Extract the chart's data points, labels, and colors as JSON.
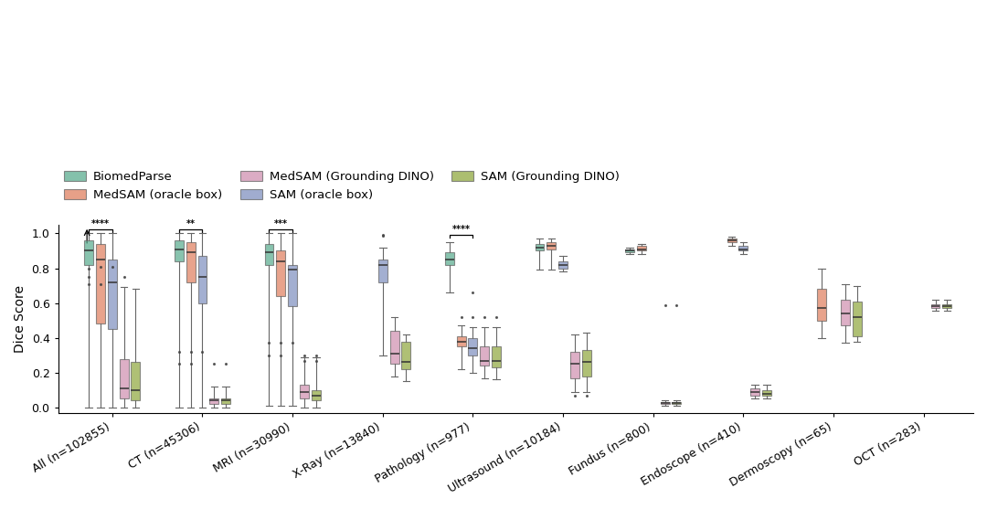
{
  "categories": [
    "All (n=102855)",
    "CT (n=45306)",
    "MRI (n=30990)",
    "X-Ray (n=13840)",
    "Pathology (n=977)",
    "Ultrasound (n=10184)",
    "Fundus (n=800)",
    "Endoscope (n=410)",
    "Dermoscopy (n=65)",
    "OCT (n=283)"
  ],
  "colors": {
    "BiomedParse": "#5BAD8F",
    "MedSAM_oracle": "#E08060",
    "SAM_oracle": "#8090C0",
    "MedSAM_DINO": "#D090B0",
    "SAM_DINO": "#90A840"
  },
  "legend_labels": [
    "BiomedParse",
    "MedSAM (oracle box)",
    "SAM (oracle box)",
    "MedSAM (Grounding DINO)",
    "SAM (Grounding DINO)"
  ],
  "ylabel": "Dice Score",
  "background_color": "#ffffff",
  "boxes": {
    "All (n=102855)": {
      "BiomedParse": {
        "skip": false,
        "min": 0.0,
        "q1": 0.82,
        "med": 0.9,
        "q3": 0.96,
        "max": 1.0,
        "fliers_lo": [],
        "fliers_hi": [
          0.8,
          0.75,
          0.71
        ]
      },
      "MedSAM_oracle": {
        "skip": false,
        "min": 0.0,
        "q1": 0.48,
        "med": 0.85,
        "q3": 0.94,
        "max": 1.0,
        "fliers_lo": [],
        "fliers_hi": [
          0.81,
          0.71
        ]
      },
      "SAM_oracle": {
        "skip": false,
        "min": 0.0,
        "q1": 0.45,
        "med": 0.72,
        "q3": 0.85,
        "max": 1.0,
        "fliers_hi": [
          0.81
        ]
      },
      "MedSAM_DINO": {
        "skip": false,
        "min": 0.0,
        "q1": 0.05,
        "med": 0.11,
        "q3": 0.28,
        "max": 0.69,
        "fliers_hi": [
          0.75
        ]
      },
      "SAM_DINO": {
        "skip": false,
        "min": 0.0,
        "q1": 0.04,
        "med": 0.1,
        "q3": 0.26,
        "max": 0.68,
        "fliers_hi": []
      }
    },
    "CT (n=45306)": {
      "BiomedParse": {
        "skip": false,
        "min": 0.0,
        "q1": 0.84,
        "med": 0.91,
        "q3": 0.96,
        "max": 1.0,
        "fliers_hi": [
          0.32,
          0.25
        ]
      },
      "MedSAM_oracle": {
        "skip": false,
        "min": 0.0,
        "q1": 0.72,
        "med": 0.89,
        "q3": 0.95,
        "max": 1.0,
        "fliers_hi": [
          0.32,
          0.25
        ]
      },
      "SAM_oracle": {
        "skip": false,
        "min": 0.0,
        "q1": 0.6,
        "med": 0.75,
        "q3": 0.87,
        "max": 1.0,
        "fliers_hi": [
          0.32
        ]
      },
      "MedSAM_DINO": {
        "skip": false,
        "min": 0.0,
        "q1": 0.02,
        "med": 0.04,
        "q3": 0.05,
        "max": 0.12,
        "fliers_hi": [
          0.25
        ]
      },
      "SAM_DINO": {
        "skip": false,
        "min": 0.0,
        "q1": 0.02,
        "med": 0.04,
        "q3": 0.05,
        "max": 0.12,
        "fliers_hi": [
          0.25
        ]
      }
    },
    "MRI (n=30990)": {
      "BiomedParse": {
        "skip": false,
        "min": 0.01,
        "q1": 0.82,
        "med": 0.89,
        "q3": 0.94,
        "max": 1.0,
        "fliers_hi": [
          0.37,
          0.3
        ]
      },
      "MedSAM_oracle": {
        "skip": false,
        "min": 0.01,
        "q1": 0.64,
        "med": 0.84,
        "q3": 0.9,
        "max": 1.0,
        "fliers_hi": [
          0.37,
          0.3
        ]
      },
      "SAM_oracle": {
        "skip": false,
        "min": 0.01,
        "q1": 0.58,
        "med": 0.79,
        "q3": 0.82,
        "max": 1.0,
        "fliers_hi": [
          0.37
        ]
      },
      "MedSAM_DINO": {
        "skip": false,
        "min": 0.0,
        "q1": 0.05,
        "med": 0.09,
        "q3": 0.13,
        "max": 0.29,
        "fliers_hi": [
          0.27,
          0.3
        ]
      },
      "SAM_DINO": {
        "skip": false,
        "min": 0.0,
        "q1": 0.04,
        "med": 0.07,
        "q3": 0.1,
        "max": 0.29,
        "fliers_hi": [
          0.27,
          0.3
        ]
      }
    },
    "X-Ray (n=13840)": {
      "BiomedParse": {
        "skip": true,
        "min": 0.0,
        "q1": 0.0,
        "med": 0.0,
        "q3": 0.0,
        "max": 0.0,
        "fliers_hi": []
      },
      "MedSAM_oracle": {
        "skip": true,
        "min": 0.0,
        "q1": 0.0,
        "med": 0.0,
        "q3": 0.0,
        "max": 0.0,
        "fliers_hi": []
      },
      "SAM_oracle": {
        "skip": false,
        "min": 0.3,
        "q1": 0.72,
        "med": 0.82,
        "q3": 0.85,
        "max": 0.92,
        "fliers_hi": [
          0.985,
          0.99
        ]
      },
      "MedSAM_DINO": {
        "skip": false,
        "min": 0.18,
        "q1": 0.25,
        "med": 0.31,
        "q3": 0.44,
        "max": 0.52,
        "fliers_hi": []
      },
      "SAM_DINO": {
        "skip": false,
        "min": 0.15,
        "q1": 0.22,
        "med": 0.26,
        "q3": 0.38,
        "max": 0.42,
        "fliers_hi": []
      }
    },
    "Pathology (n=977)": {
      "BiomedParse": {
        "skip": false,
        "min": 0.66,
        "q1": 0.82,
        "med": 0.85,
        "q3": 0.89,
        "max": 0.95,
        "fliers_hi": []
      },
      "MedSAM_oracle": {
        "skip": false,
        "min": 0.22,
        "q1": 0.35,
        "med": 0.38,
        "q3": 0.41,
        "max": 0.47,
        "fliers_hi": [
          0.52
        ]
      },
      "SAM_oracle": {
        "skip": false,
        "min": 0.2,
        "q1": 0.3,
        "med": 0.34,
        "q3": 0.4,
        "max": 0.46,
        "fliers_hi": [
          0.52,
          0.66
        ]
      },
      "MedSAM_DINO": {
        "skip": false,
        "min": 0.17,
        "q1": 0.24,
        "med": 0.27,
        "q3": 0.35,
        "max": 0.46,
        "fliers_hi": [
          0.52
        ]
      },
      "SAM_DINO": {
        "skip": false,
        "min": 0.16,
        "q1": 0.23,
        "med": 0.27,
        "q3": 0.35,
        "max": 0.46,
        "fliers_hi": [
          0.52
        ]
      }
    },
    "Ultrasound (n=10184)": {
      "BiomedParse": {
        "skip": false,
        "min": 0.79,
        "q1": 0.9,
        "med": 0.92,
        "q3": 0.94,
        "max": 0.97,
        "fliers_hi": []
      },
      "MedSAM_oracle": {
        "skip": false,
        "min": 0.79,
        "q1": 0.91,
        "med": 0.93,
        "q3": 0.95,
        "max": 0.97,
        "fliers_hi": []
      },
      "SAM_oracle": {
        "skip": false,
        "min": 0.78,
        "q1": 0.8,
        "med": 0.82,
        "q3": 0.84,
        "max": 0.87,
        "fliers_hi": []
      },
      "MedSAM_DINO": {
        "skip": false,
        "min": 0.09,
        "q1": 0.17,
        "med": 0.25,
        "q3": 0.32,
        "max": 0.42,
        "fliers_hi": [
          0.07
        ]
      },
      "SAM_DINO": {
        "skip": false,
        "min": 0.09,
        "q1": 0.18,
        "med": 0.26,
        "q3": 0.33,
        "max": 0.43,
        "fliers_hi": [
          0.07
        ]
      }
    },
    "Fundus (n=800)": {
      "BiomedParse": {
        "skip": false,
        "min": 0.88,
        "q1": 0.89,
        "med": 0.9,
        "q3": 0.91,
        "max": 0.92,
        "fliers_hi": []
      },
      "MedSAM_oracle": {
        "skip": false,
        "min": 0.88,
        "q1": 0.9,
        "med": 0.91,
        "q3": 0.93,
        "max": 0.94,
        "fliers_hi": []
      },
      "SAM_oracle": {
        "skip": true,
        "min": 0.0,
        "q1": 0.0,
        "med": 0.0,
        "q3": 0.0,
        "max": 0.0,
        "fliers_hi": []
      },
      "MedSAM_DINO": {
        "skip": false,
        "min": 0.01,
        "q1": 0.02,
        "med": 0.025,
        "q3": 0.03,
        "max": 0.04,
        "fliers_hi": [
          0.59
        ]
      },
      "SAM_DINO": {
        "skip": false,
        "min": 0.01,
        "q1": 0.02,
        "med": 0.025,
        "q3": 0.03,
        "max": 0.04,
        "fliers_hi": [
          0.59
        ]
      }
    },
    "Endoscope (n=410)": {
      "BiomedParse": {
        "skip": true,
        "min": 0.0,
        "q1": 0.0,
        "med": 0.0,
        "q3": 0.0,
        "max": 0.0,
        "fliers_hi": []
      },
      "MedSAM_oracle": {
        "skip": false,
        "min": 0.93,
        "q1": 0.95,
        "med": 0.96,
        "q3": 0.97,
        "max": 0.98,
        "fliers_hi": []
      },
      "SAM_oracle": {
        "skip": false,
        "min": 0.88,
        "q1": 0.9,
        "med": 0.91,
        "q3": 0.93,
        "max": 0.95,
        "fliers_hi": []
      },
      "MedSAM_DINO": {
        "skip": false,
        "min": 0.05,
        "q1": 0.07,
        "med": 0.09,
        "q3": 0.11,
        "max": 0.13,
        "fliers_hi": []
      },
      "SAM_DINO": {
        "skip": false,
        "min": 0.05,
        "q1": 0.07,
        "med": 0.08,
        "q3": 0.1,
        "max": 0.13,
        "fliers_hi": []
      }
    },
    "Dermoscopy (n=65)": {
      "BiomedParse": {
        "skip": true,
        "min": 0.0,
        "q1": 0.0,
        "med": 0.0,
        "q3": 0.0,
        "max": 0.0,
        "fliers_hi": []
      },
      "MedSAM_oracle": {
        "skip": false,
        "min": 0.4,
        "q1": 0.5,
        "med": 0.57,
        "q3": 0.68,
        "max": 0.8,
        "fliers_hi": []
      },
      "SAM_oracle": {
        "skip": true,
        "min": 0.0,
        "q1": 0.0,
        "med": 0.0,
        "q3": 0.0,
        "max": 0.0,
        "fliers_hi": []
      },
      "MedSAM_DINO": {
        "skip": false,
        "min": 0.37,
        "q1": 0.47,
        "med": 0.54,
        "q3": 0.62,
        "max": 0.71,
        "fliers_hi": []
      },
      "SAM_DINO": {
        "skip": false,
        "min": 0.38,
        "q1": 0.41,
        "med": 0.52,
        "q3": 0.61,
        "max": 0.7,
        "fliers_hi": []
      }
    },
    "OCT (n=283)": {
      "BiomedParse": {
        "skip": true,
        "min": 0.0,
        "q1": 0.0,
        "med": 0.0,
        "q3": 0.0,
        "max": 0.0,
        "fliers_hi": []
      },
      "MedSAM_oracle": {
        "skip": true,
        "min": 0.0,
        "q1": 0.0,
        "med": 0.0,
        "q3": 0.0,
        "max": 0.0,
        "fliers_hi": []
      },
      "SAM_oracle": {
        "skip": true,
        "min": 0.0,
        "q1": 0.0,
        "med": 0.0,
        "q3": 0.0,
        "max": 0.0,
        "fliers_hi": []
      },
      "MedSAM_DINO": {
        "skip": false,
        "min": 0.555,
        "q1": 0.57,
        "med": 0.58,
        "q3": 0.592,
        "max": 0.62,
        "fliers_hi": []
      },
      "SAM_DINO": {
        "skip": false,
        "min": 0.555,
        "q1": 0.57,
        "med": 0.58,
        "q3": 0.592,
        "max": 0.62,
        "fliers_hi": []
      }
    }
  }
}
